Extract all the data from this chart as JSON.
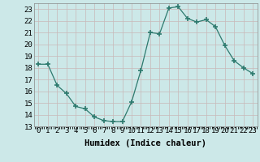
{
  "x": [
    0,
    1,
    2,
    3,
    4,
    5,
    6,
    7,
    8,
    9,
    10,
    11,
    12,
    13,
    14,
    15,
    16,
    17,
    18,
    19,
    20,
    21,
    22,
    23
  ],
  "y": [
    18.3,
    18.3,
    16.5,
    15.8,
    14.7,
    14.5,
    13.8,
    13.5,
    13.4,
    13.4,
    15.1,
    17.8,
    21.0,
    20.9,
    23.1,
    23.2,
    22.2,
    21.9,
    22.1,
    21.5,
    19.9,
    18.6,
    18.0,
    17.5
  ],
  "xlabel": "Humidex (Indice chaleur)",
  "ylim": [
    13,
    23.5
  ],
  "xlim": [
    -0.5,
    23.5
  ],
  "yticks": [
    13,
    14,
    15,
    16,
    17,
    18,
    19,
    20,
    21,
    22,
    23
  ],
  "xticks": [
    0,
    1,
    2,
    3,
    4,
    5,
    6,
    7,
    8,
    9,
    10,
    11,
    12,
    13,
    14,
    15,
    16,
    17,
    18,
    19,
    20,
    21,
    22,
    23
  ],
  "line_color": "#2d7a6e",
  "marker_color": "#2d7a6e",
  "bg_color": "#cce8e8",
  "grid_color": "#b0d0d0",
  "tick_fontsize": 6.5,
  "xlabel_fontsize": 7.5
}
